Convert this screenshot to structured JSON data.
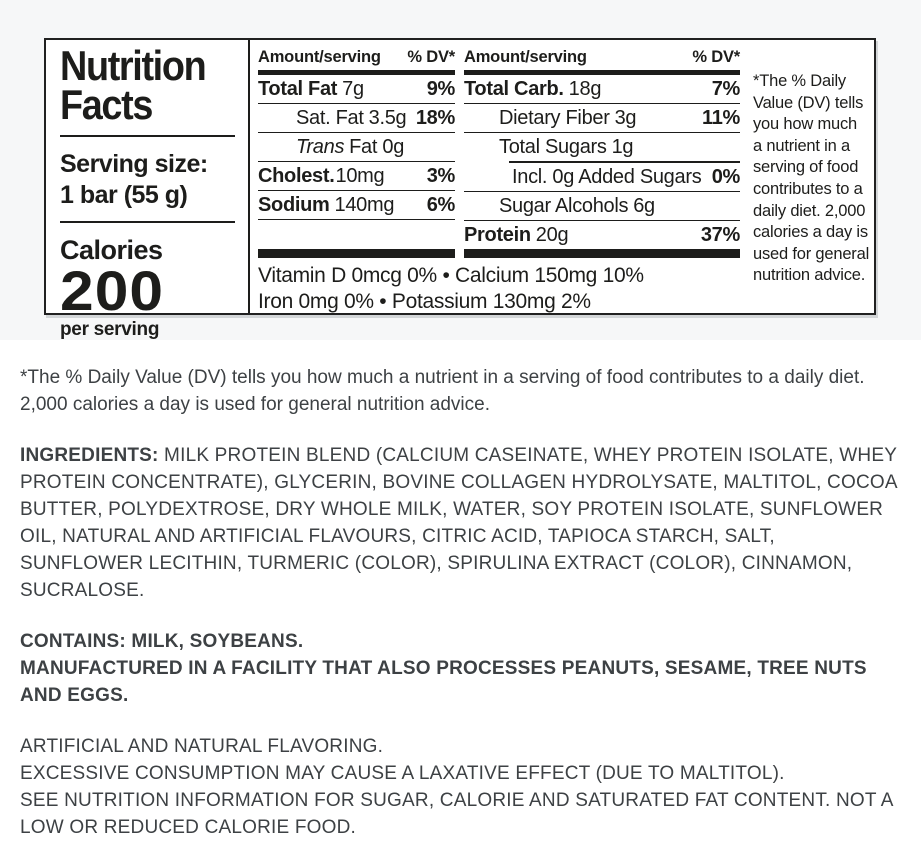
{
  "colors": {
    "band_background": "#f6f7f8",
    "page_background": "#ffffff",
    "label_ink": "#1d1d1b",
    "body_ink": "#3d4144"
  },
  "nutrition_label": {
    "title": [
      "Nutrition",
      "Facts"
    ],
    "serving": {
      "label": "Serving size:",
      "value": "1 bar (55 g)"
    },
    "calories": {
      "label": "Calories",
      "value": "200",
      "per": "per serving"
    },
    "columns": [
      {
        "header": {
          "amount": "Amount/serving",
          "dv": "% DV*"
        },
        "rows": [
          {
            "name": "Total Fat",
            "value": "7g",
            "dv": "9%"
          },
          {
            "name": "Sat. Fat",
            "value": "3.5g",
            "dv": "18%"
          },
          {
            "name": "Trans",
            "value": "Fat 0g",
            "dv": ""
          },
          {
            "name": "Cholest.",
            "value": "10mg",
            "dv": "3%"
          },
          {
            "name": "Sodium",
            "value": "140mg",
            "dv": "6%"
          }
        ]
      },
      {
        "header": {
          "amount": "Amount/serving",
          "dv": "% DV*"
        },
        "rows": [
          {
            "name": "Total Carb.",
            "value": "18g",
            "dv": "7%"
          },
          {
            "name": "Dietary Fiber",
            "value": "3g",
            "dv": "11%"
          },
          {
            "name": "Total Sugars",
            "value": "1g",
            "dv": ""
          },
          {
            "name": "Incl. 0g Added Sugars",
            "value": "",
            "dv": "0%"
          },
          {
            "name": "Sugar Alcohols",
            "value": "6g",
            "dv": ""
          },
          {
            "name": "Protein",
            "value": "20g",
            "dv": "37%"
          }
        ]
      }
    ],
    "vitamins": [
      "Vitamin D 0mcg 0% • Calcium 150mg 10%",
      "Iron 0mg 0% • Potassium 130mg 2%"
    ],
    "footnote": "*The % Daily Value (DV) tells you how much a nutrient in a serving of food contributes to a daily diet. 2,000 calories a day is used for general nutrition advice."
  },
  "body": {
    "dv_note": "*The % Daily Value (DV) tells you how much a nutrient in a serving of food contributes to a daily diet. 2,000 calories a day is used for general nutrition advice.",
    "ingredients_label": "INGREDIENTS:",
    "ingredients": " MILK PROTEIN BLEND (CALCIUM CASEINATE, WHEY PROTEIN ISOLATE, WHEY PROTEIN CONCENTRATE), GLYCERIN, BOVINE COLLAGEN HYDROLYSATE, MALTITOL, COCOA BUTTER, POLYDEXTROSE, DRY WHOLE MILK, WATER, SOY PROTEIN ISOLATE, SUNFLOWER OIL, NATURAL AND ARTIFICIAL FLAVOURS, CITRIC ACID, TAPIOCA STARCH, SALT, SUNFLOWER LECITHIN, TURMERIC (COLOR), SPIRULINA EXTRACT (COLOR), CINNAMON, SUCRALOSE.",
    "contains_line1": "CONTAINS: MILK, SOYBEANS.",
    "contains_line2": "MANUFACTURED IN A FACILITY THAT ALSO PROCESSES PEANUTS, SESAME, TREE NUTS AND EGGS.",
    "warning_lines": [
      "ARTIFICIAL AND NATURAL FLAVORING.",
      "EXCESSIVE CONSUMPTION MAY CAUSE A LAXATIVE EFFECT (DUE TO MALTITOL).",
      "SEE NUTRITION INFORMATION FOR SUGAR, CALORIE AND SATURATED FAT CONTENT. NOT A LOW OR REDUCED CALORIE FOOD."
    ]
  }
}
